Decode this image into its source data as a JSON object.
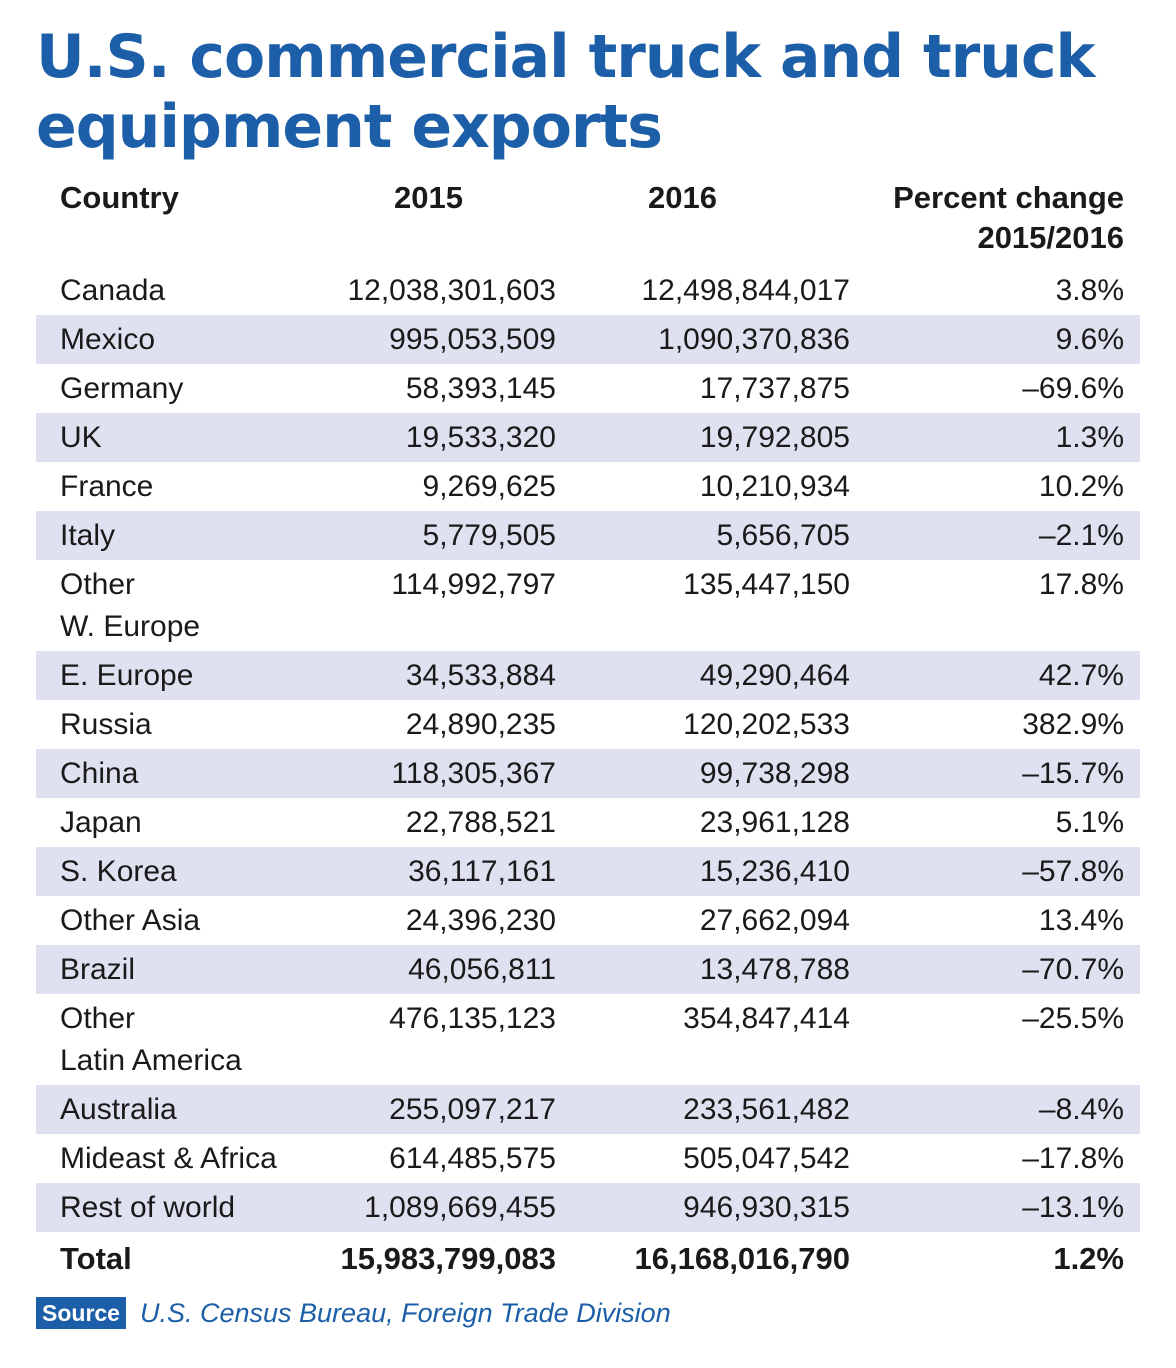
{
  "chart_data": {
    "type": "table",
    "title": [
      "U.S. commercial truck and truck",
      "equipment exports"
    ],
    "columns": [
      "Country",
      "2015",
      "2016",
      "Percent change 2015/2016"
    ],
    "header_lines": [
      "Percent change",
      "2015/2016"
    ],
    "rows": [
      {
        "country": [
          "Canada"
        ],
        "y2015": "12,038,301,603",
        "y2016": "12,498,844,017",
        "change": "3.8%"
      },
      {
        "country": [
          "Mexico"
        ],
        "y2015": "995,053,509",
        "y2016": "1,090,370,836",
        "change": "9.6%"
      },
      {
        "country": [
          "Germany"
        ],
        "y2015": "58,393,145",
        "y2016": "17,737,875",
        "change": "–69.6%"
      },
      {
        "country": [
          "UK"
        ],
        "y2015": "19,533,320",
        "y2016": "19,792,805",
        "change": "1.3%"
      },
      {
        "country": [
          "France"
        ],
        "y2015": "9,269,625",
        "y2016": "10,210,934",
        "change": "10.2%"
      },
      {
        "country": [
          "Italy"
        ],
        "y2015": "5,779,505",
        "y2016": "5,656,705",
        "change": "–2.1%"
      },
      {
        "country": [
          "Other",
          "W. Europe"
        ],
        "y2015": "114,992,797",
        "y2016": "135,447,150",
        "change": "17.8%"
      },
      {
        "country": [
          "E. Europe"
        ],
        "y2015": "34,533,884",
        "y2016": "49,290,464",
        "change": "42.7%"
      },
      {
        "country": [
          "Russia"
        ],
        "y2015": "24,890,235",
        "y2016": "120,202,533",
        "change": "382.9%"
      },
      {
        "country": [
          "China"
        ],
        "y2015": "118,305,367",
        "y2016": "99,738,298",
        "change": "–15.7%"
      },
      {
        "country": [
          "Japan"
        ],
        "y2015": "22,788,521",
        "y2016": "23,961,128",
        "change": "5.1%"
      },
      {
        "country": [
          "S. Korea"
        ],
        "y2015": "36,117,161",
        "y2016": "15,236,410",
        "change": "–57.8%"
      },
      {
        "country": [
          "Other Asia"
        ],
        "y2015": "24,396,230",
        "y2016": "27,662,094",
        "change": "13.4%"
      },
      {
        "country": [
          "Brazil"
        ],
        "y2015": "46,056,811",
        "y2016": "13,478,788",
        "change": "–70.7%"
      },
      {
        "country": [
          "Other",
          "Latin America"
        ],
        "y2015": "476,135,123",
        "y2016": "354,847,414",
        "change": "–25.5%"
      },
      {
        "country": [
          "Australia"
        ],
        "y2015": "255,097,217",
        "y2016": "233,561,482",
        "change": "–8.4%"
      },
      {
        "country": [
          "Mideast & Africa"
        ],
        "y2015": "614,485,575",
        "y2016": "505,047,542",
        "change": "–17.8%"
      },
      {
        "country": [
          "Rest of world"
        ],
        "y2015": "1,089,669,455",
        "y2016": "946,930,315",
        "change": "–13.1%"
      }
    ],
    "total": {
      "label": "Total",
      "y2015": "15,983,799,083",
      "y2016": "16,168,016,790",
      "change": "1.2%"
    },
    "source_label": "Source",
    "source_text": "U.S. Census Bureau, Foreign Trade Division"
  },
  "colors": {
    "accent": "#1c5fa8",
    "row_shade": "#dfe1f0",
    "text": "#1a1a1a"
  }
}
